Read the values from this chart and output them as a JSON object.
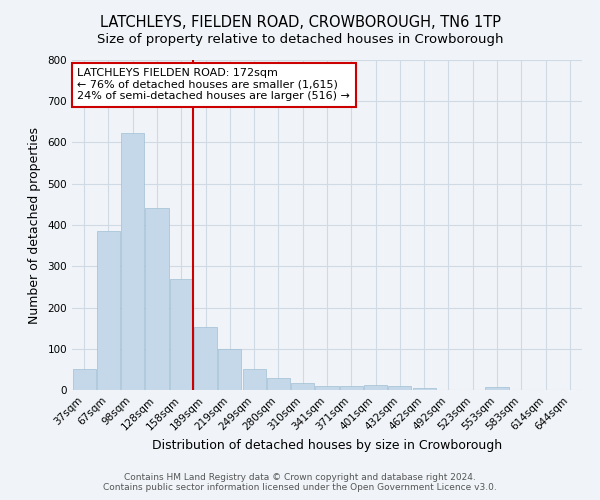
{
  "title": "LATCHLEYS, FIELDEN ROAD, CROWBOROUGH, TN6 1TP",
  "subtitle": "Size of property relative to detached houses in Crowborough",
  "xlabel": "Distribution of detached houses by size in Crowborough",
  "ylabel": "Number of detached properties",
  "categories": [
    "37sqm",
    "67sqm",
    "98sqm",
    "128sqm",
    "158sqm",
    "189sqm",
    "219sqm",
    "249sqm",
    "280sqm",
    "310sqm",
    "341sqm",
    "371sqm",
    "401sqm",
    "432sqm",
    "462sqm",
    "492sqm",
    "523sqm",
    "553sqm",
    "583sqm",
    "614sqm",
    "644sqm"
  ],
  "values": [
    50,
    385,
    623,
    440,
    268,
    152,
    100,
    52,
    30,
    18,
    10,
    10,
    12,
    10,
    5,
    0,
    0,
    8,
    0,
    0,
    0
  ],
  "bar_color": "#c5d8ea",
  "bar_edge_color": "#a0bfd4",
  "plot_bg_color": "#f0f4f8",
  "fig_bg_color": "#f0f4f8",
  "grid_color": "#d0dae4",
  "vline_color": "#cc0000",
  "annotation_text": "LATCHLEYS FIELDEN ROAD: 172sqm\n← 76% of detached houses are smaller (1,615)\n24% of semi-detached houses are larger (516) →",
  "annotation_box_color": "#ffffff",
  "annotation_box_edge_color": "#cc0000",
  "ylim": [
    0,
    800
  ],
  "yticks": [
    0,
    100,
    200,
    300,
    400,
    500,
    600,
    700,
    800
  ],
  "footer": "Contains HM Land Registry data © Crown copyright and database right 2024.\nContains public sector information licensed under the Open Government Licence v3.0.",
  "title_fontsize": 10.5,
  "subtitle_fontsize": 9.5,
  "axis_label_fontsize": 9,
  "tick_fontsize": 7.5,
  "annotation_fontsize": 8,
  "footer_fontsize": 6.5,
  "vline_x": 4.5
}
